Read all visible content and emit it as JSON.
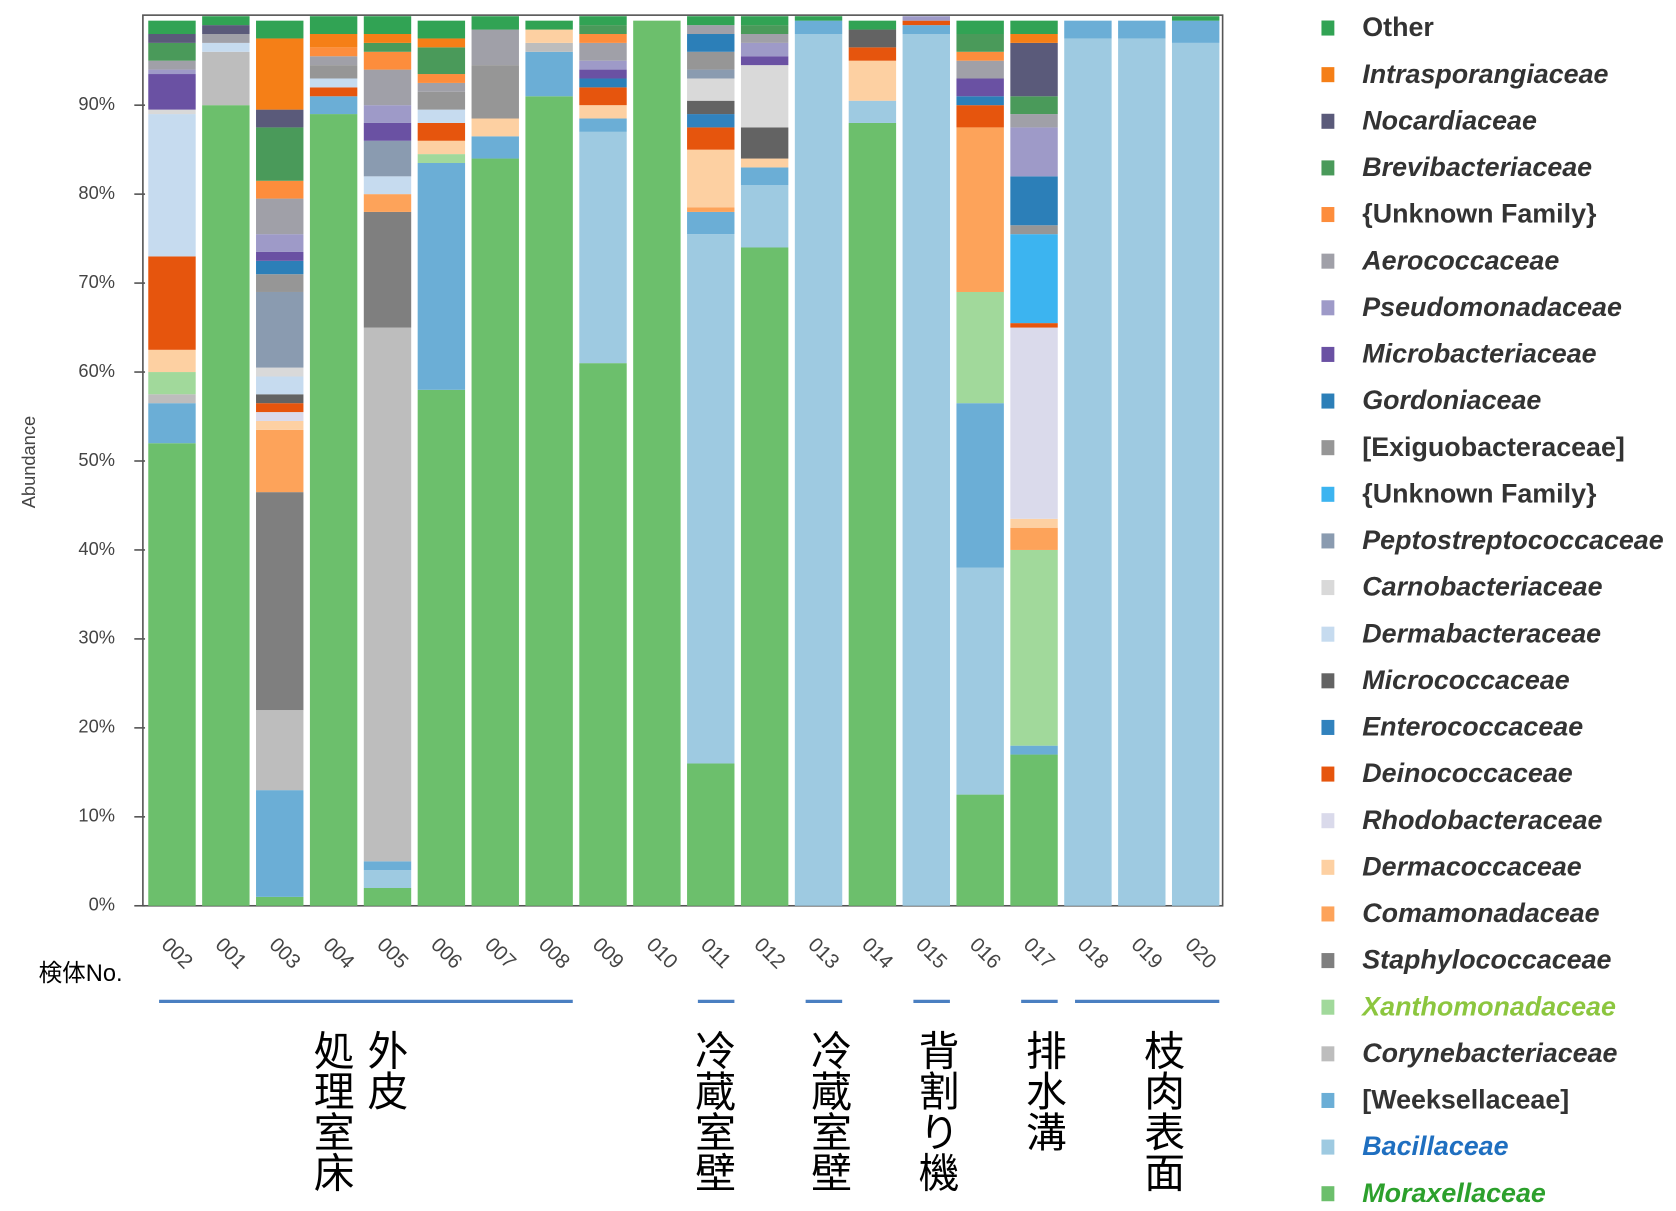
{
  "chart_data": {
    "type": "stacked_bar",
    "y_label": "Abundance",
    "x_label": "検体No.",
    "categories": [
      "002",
      "001",
      "003",
      "004",
      "005",
      "006",
      "007",
      "008",
      "009",
      "010",
      "011",
      "012",
      "013",
      "014",
      "015",
      "016",
      "017",
      "018",
      "019",
      "020"
    ],
    "ylim": [
      0,
      100
    ],
    "yticks": [
      {
        "value": 0,
        "label": "0%"
      },
      {
        "value": 10,
        "label": "10%"
      },
      {
        "value": 20,
        "label": "20%"
      },
      {
        "value": 30,
        "label": "30%"
      },
      {
        "value": 40,
        "label": "40%"
      },
      {
        "value": 50,
        "label": "50%"
      },
      {
        "value": 60,
        "label": "60%"
      },
      {
        "value": 70,
        "label": "70%"
      },
      {
        "value": 80,
        "label": "80%"
      },
      {
        "value": 90,
        "label": "90%"
      }
    ],
    "groups": [
      "処理室床",
      "外皮",
      "冷蔵室壁",
      "冷蔵室壁",
      "背割り機",
      "排水溝",
      "枝肉表面"
    ],
    "series": [
      {
        "name": "Moraxellaceae",
        "color": "#6cbf6c",
        "italic": true,
        "label_color": "#2ca02c",
        "values": [
          52,
          90,
          1,
          89,
          2,
          58,
          84,
          91,
          61,
          99.5,
          16,
          74,
          0,
          88,
          0,
          12.5,
          17,
          0,
          0,
          0
        ]
      },
      {
        "name": "Bacillaceae",
        "color": "#9ecae1",
        "italic": true,
        "label_color": "#1f6fc0",
        "values": [
          0,
          0,
          0,
          0,
          2,
          0,
          0,
          0,
          26,
          0,
          59.5,
          7,
          98,
          2.5,
          98,
          25.5,
          0,
          97.5,
          97.5,
          97
        ]
      },
      {
        "name": "[Weeksellaceae]",
        "color": "#6baed6",
        "italic": false,
        "values": [
          4.5,
          0,
          12,
          2,
          1,
          25.5,
          2.5,
          5,
          1.5,
          0,
          2.5,
          2,
          1.5,
          0,
          1,
          18.5,
          1,
          2,
          2,
          2.5
        ]
      },
      {
        "name": "Corynebacteriaceae",
        "color": "#bdbdbd",
        "italic": true,
        "values": [
          1,
          6,
          9,
          0,
          60,
          0,
          0,
          1,
          0,
          0,
          0,
          0,
          0,
          0,
          0,
          0,
          0,
          0,
          0,
          0
        ]
      },
      {
        "name": "Xanthomonadaceae",
        "color": "#a1d99b",
        "italic": true,
        "label_color": "#8cc63f",
        "values": [
          2.5,
          0,
          0,
          0,
          0,
          1,
          0,
          0,
          0,
          0,
          0,
          0,
          0,
          0,
          0,
          12.5,
          22,
          0,
          0,
          0
        ]
      },
      {
        "name": "Staphylococcaceae",
        "color": "#7f7f7f",
        "italic": true,
        "values": [
          0,
          0,
          24.5,
          0,
          13,
          0,
          0,
          0,
          0,
          0,
          0,
          0,
          0,
          0,
          0,
          0,
          0,
          0,
          0,
          0
        ]
      },
      {
        "name": "Comamonadaceae",
        "color": "#fda35a",
        "italic": true,
        "values": [
          0,
          0,
          7,
          0,
          2,
          0,
          0,
          0,
          0,
          0,
          0.5,
          0,
          0,
          0,
          0,
          18.5,
          2.5,
          0,
          0,
          0
        ]
      },
      {
        "name": "Dermacoccaceae",
        "color": "#fdd0a2",
        "italic": true,
        "values": [
          2.5,
          0,
          1,
          0,
          0,
          1.5,
          2,
          1.5,
          1.5,
          0,
          6.5,
          1,
          0,
          4.5,
          0,
          0,
          1,
          0,
          0,
          0
        ]
      },
      {
        "name": "Rhodobacteraceae",
        "color": "#dadaeb",
        "italic": true,
        "values": [
          0,
          0,
          1,
          0,
          0,
          0,
          0,
          0,
          0,
          0,
          0,
          0,
          0,
          0,
          0,
          0,
          21.5,
          0,
          0,
          0
        ]
      },
      {
        "name": "Deinococcaceae",
        "color": "#e6550d",
        "italic": true,
        "values": [
          10.5,
          0,
          1,
          1,
          0,
          2,
          0,
          0,
          2,
          0,
          2.5,
          0,
          0,
          1.5,
          0.5,
          2.5,
          0.5,
          0,
          0,
          0
        ]
      },
      {
        "name": "Enterococcaceae",
        "color": "#3182bd",
        "italic": true,
        "values": [
          0,
          0,
          0,
          0,
          0,
          0,
          0,
          0,
          0,
          0,
          1.5,
          0,
          0,
          0,
          0,
          0,
          0,
          0,
          0,
          0
        ]
      },
      {
        "name": "Micrococcaceae",
        "color": "#636363",
        "italic": true,
        "values": [
          0,
          0,
          1,
          0,
          0,
          0,
          0,
          0,
          0,
          0,
          1.5,
          3.5,
          0,
          2,
          0,
          0,
          0,
          0,
          0,
          0
        ]
      },
      {
        "name": "Dermabacteraceae",
        "color": "#c6dbef",
        "italic": true,
        "values": [
          16,
          1,
          2,
          1,
          2,
          1.5,
          0,
          0,
          0,
          0,
          0,
          0,
          0,
          0,
          0,
          0,
          0,
          0,
          0,
          0
        ]
      },
      {
        "name": "Carnobacteriaceae",
        "color": "#d9d9d9",
        "italic": true,
        "values": [
          0.5,
          0,
          1,
          0,
          0,
          0,
          0,
          0,
          0,
          0,
          2.5,
          7,
          0,
          0,
          0,
          0,
          0,
          0,
          0,
          0
        ]
      },
      {
        "name": "Peptostreptococcaceae",
        "color": "#8a9bb0",
        "italic": true,
        "values": [
          0,
          0,
          8.5,
          0,
          4,
          0,
          0,
          0,
          0,
          0,
          1,
          0,
          0,
          0,
          0,
          0,
          0,
          0,
          0,
          0
        ]
      },
      {
        "name": "{Unknown Family}",
        "color": "#3cb4f0",
        "italic": false,
        "values": [
          0,
          0,
          0,
          0,
          0,
          0,
          0,
          0,
          0,
          0,
          0,
          0,
          0,
          0,
          0,
          0,
          10,
          0,
          0,
          0
        ]
      },
      {
        "name": "[Exiguobacteraceae]",
        "color": "#969696",
        "italic": false,
        "values": [
          0,
          0,
          2,
          1.5,
          0,
          2,
          6,
          0,
          0,
          0,
          2,
          0,
          0,
          0,
          0,
          0,
          1,
          0,
          0,
          0
        ]
      },
      {
        "name": "Gordoniaceae",
        "color": "#2c7fb8",
        "italic": true,
        "values": [
          0,
          0,
          1.5,
          0,
          0,
          0,
          0,
          0,
          1,
          0,
          2,
          0,
          0,
          0,
          0,
          1,
          5.5,
          0,
          0,
          0
        ]
      },
      {
        "name": "Microbacteriaceae",
        "color": "#6a51a3",
        "italic": true,
        "values": [
          4,
          0,
          1,
          0,
          2,
          0,
          0,
          0,
          1,
          0,
          0,
          1,
          0,
          0,
          0,
          2,
          0,
          0,
          0,
          0
        ]
      },
      {
        "name": "Pseudomonadaceae",
        "color": "#9e9ac8",
        "italic": true,
        "values": [
          0.5,
          0,
          2,
          0,
          2,
          0,
          0,
          0,
          1,
          0,
          0,
          1.5,
          0,
          0,
          0.5,
          0,
          5.5,
          0,
          0,
          0
        ]
      },
      {
        "name": "Aerococcaceae",
        "color": "#a0a0a8",
        "italic": true,
        "values": [
          1,
          1,
          4,
          1,
          4,
          1,
          4,
          0,
          2,
          0,
          1,
          1,
          0,
          0,
          0,
          2,
          1.5,
          0,
          0,
          0
        ]
      },
      {
        "name": "{Unknown Family}",
        "color": "#fd8d3c",
        "italic": false,
        "values": [
          0,
          0,
          2,
          1,
          2,
          1,
          0,
          0,
          1,
          0,
          0,
          0,
          0,
          0,
          0,
          1,
          0,
          0,
          0,
          0
        ]
      },
      {
        "name": "Brevibacteriaceae",
        "color": "#4a9a5a",
        "italic": true,
        "values": [
          2,
          0,
          6,
          0,
          1,
          3,
          0,
          0,
          1,
          0,
          0,
          1,
          0,
          0,
          0,
          2,
          2,
          0,
          0,
          0
        ]
      },
      {
        "name": "Nocardiaceae",
        "color": "#5a5a7a",
        "italic": true,
        "values": [
          1,
          1,
          2,
          0,
          0,
          0,
          0,
          0,
          0,
          0,
          0,
          0,
          0,
          0,
          0,
          0,
          6,
          0,
          0,
          0
        ]
      },
      {
        "name": "Intrasporangiaceae",
        "color": "#f57f17",
        "italic": true,
        "values": [
          0,
          0,
          8,
          1.5,
          1,
          1,
          0,
          0,
          0,
          0,
          0,
          0,
          0,
          0,
          0,
          0,
          1,
          0,
          0,
          0
        ]
      },
      {
        "name": "Other",
        "color": "#31a354",
        "italic": false,
        "values": [
          1.5,
          1,
          2,
          2,
          2,
          2,
          1.5,
          1,
          1,
          0,
          1,
          1,
          0.5,
          1,
          0,
          1.5,
          1.5,
          0,
          0,
          0.5
        ]
      }
    ]
  }
}
